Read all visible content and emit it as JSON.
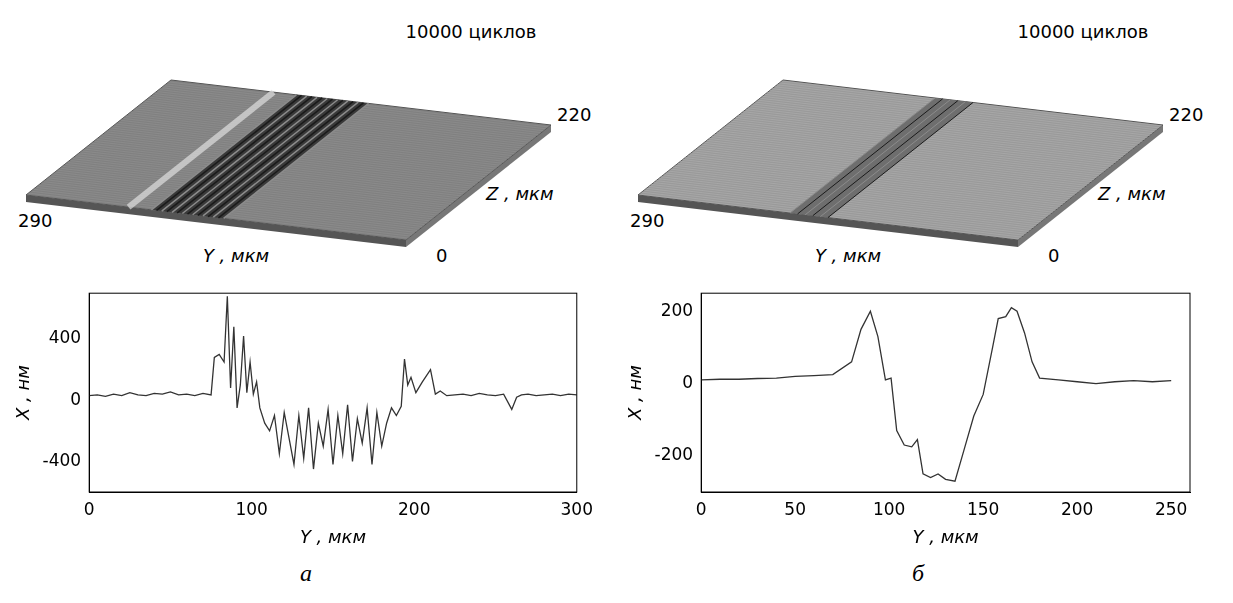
{
  "chart_data": [
    {
      "type": "line",
      "x_label": "Y , мкм",
      "y_label": "X , нм",
      "color": "#333333",
      "grid": false,
      "xlim": [
        0,
        300
      ],
      "xticks": [
        0,
        100,
        200,
        300
      ],
      "ylim": [
        -600,
        700
      ],
      "yticks": [
        -400,
        0,
        400
      ],
      "x": [
        0,
        5,
        10,
        15,
        20,
        25,
        30,
        35,
        40,
        45,
        50,
        55,
        60,
        65,
        70,
        75,
        77,
        80,
        83,
        85,
        87,
        89,
        91,
        93,
        95,
        97,
        99,
        101,
        103,
        105,
        108,
        111,
        114,
        117,
        120,
        123,
        126,
        129,
        132,
        135,
        138,
        141,
        144,
        147,
        150,
        153,
        156,
        159,
        162,
        165,
        168,
        171,
        174,
        177,
        180,
        183,
        186,
        189,
        192,
        194,
        196,
        198,
        201,
        205,
        210,
        213,
        216,
        220,
        225,
        230,
        235,
        240,
        245,
        250,
        255,
        260,
        263,
        266,
        270,
        275,
        280,
        285,
        290,
        295,
        300
      ],
      "values": [
        30,
        35,
        25,
        40,
        30,
        50,
        35,
        30,
        45,
        40,
        55,
        35,
        40,
        30,
        45,
        35,
        280,
        300,
        250,
        680,
        80,
        480,
        -50,
        100,
        420,
        50,
        250,
        40,
        120,
        -50,
        -150,
        -200,
        -100,
        -350,
        -80,
        -250,
        -420,
        -100,
        -380,
        -50,
        -450,
        -150,
        -300,
        -60,
        -420,
        -100,
        -350,
        -30,
        -400,
        -120,
        -280,
        -50,
        -420,
        -80,
        -300,
        -150,
        -50,
        -100,
        -40,
        270,
        100,
        150,
        50,
        120,
        200,
        40,
        60,
        30,
        35,
        40,
        30,
        45,
        35,
        30,
        40,
        -60,
        20,
        35,
        40,
        30,
        35,
        40,
        30,
        40,
        35
      ]
    },
    {
      "type": "line",
      "x_label": "Y , мкм",
      "y_label": "X , нм",
      "color": "#333333",
      "grid": false,
      "xlim": [
        0,
        260
      ],
      "xticks": [
        0,
        50,
        100,
        150,
        200,
        250
      ],
      "ylim": [
        -300,
        250
      ],
      "yticks": [
        -200,
        0,
        200
      ],
      "x": [
        0,
        10,
        20,
        30,
        40,
        50,
        60,
        70,
        80,
        85,
        90,
        94,
        98,
        101,
        104,
        108,
        112,
        115,
        118,
        122,
        126,
        130,
        135,
        140,
        145,
        150,
        155,
        158,
        162,
        165,
        168,
        172,
        176,
        180,
        190,
        200,
        210,
        220,
        230,
        240,
        250
      ],
      "values": [
        10,
        12,
        12,
        14,
        15,
        20,
        22,
        25,
        60,
        150,
        200,
        130,
        10,
        15,
        -130,
        -170,
        -175,
        -155,
        -250,
        -260,
        -250,
        -265,
        -270,
        -180,
        -90,
        -30,
        100,
        180,
        185,
        210,
        200,
        140,
        60,
        15,
        10,
        5,
        0,
        5,
        8,
        5,
        8
      ]
    }
  ],
  "panels": [
    {
      "letter": "а",
      "surface": {
        "title": "10000 циклов",
        "y_label": "Y , мкм",
        "z_label": "Z , мкм",
        "y_max": 290,
        "z_max": 220,
        "origin": 0
      }
    },
    {
      "letter": "б",
      "surface": {
        "title": "10000 циклов",
        "y_label": "Y , мкм",
        "z_label": "Z , мкм",
        "y_max": 290,
        "z_max": 220,
        "origin": 0
      }
    }
  ]
}
